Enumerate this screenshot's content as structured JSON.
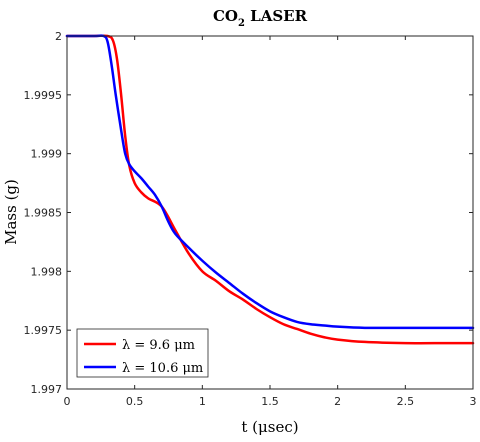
{
  "chart_data": {
    "type": "line",
    "title": "CO",
    "title_subscript": "2",
    "title_rest": " LASER",
    "xlabel": "t (μsec)",
    "ylabel": "Mass (g)",
    "xlim": [
      0,
      3
    ],
    "ylim": [
      1.997,
      2.0
    ],
    "x_ticks": [
      0,
      0.5,
      1,
      1.5,
      2,
      2.5,
      3
    ],
    "x_tick_labels": [
      "0",
      "0.5",
      "1",
      "1.5",
      "2",
      "2.5",
      "3"
    ],
    "y_ticks": [
      1.997,
      1.9975,
      1.998,
      1.9985,
      1.999,
      1.9995,
      2.0
    ],
    "y_tick_labels": [
      "1.997",
      "1.9975",
      "1.998",
      "1.9985",
      "1.999",
      "1.9995",
      "2"
    ],
    "grid": false,
    "legend_position": "bottom-left",
    "series": [
      {
        "name": "λ = 9.6 μm",
        "color": "#ff0000",
        "x": [
          0,
          0.2,
          0.3,
          0.34,
          0.37,
          0.4,
          0.43,
          0.46,
          0.5,
          0.55,
          0.6,
          0.7,
          0.8,
          0.9,
          1.0,
          1.1,
          1.2,
          1.3,
          1.4,
          1.5,
          1.6,
          1.7,
          1.8,
          1.9,
          2.0,
          2.2,
          2.5,
          2.8,
          3.0
        ],
        "y": [
          2.0,
          2.0,
          2.0,
          1.99996,
          1.9998,
          1.9995,
          1.99915,
          1.9989,
          1.99875,
          1.99867,
          1.99862,
          1.99855,
          1.99835,
          1.99815,
          1.998,
          1.99792,
          1.99783,
          1.99776,
          1.99768,
          1.99761,
          1.99755,
          1.99751,
          1.99747,
          1.99744,
          1.99742,
          1.9974,
          1.99739,
          1.99739,
          1.99739
        ]
      },
      {
        "name": "λ = 10.6 μm",
        "color": "#0000ff",
        "x": [
          0,
          0.2,
          0.27,
          0.3,
          0.33,
          0.36,
          0.4,
          0.43,
          0.46,
          0.5,
          0.55,
          0.6,
          0.65,
          0.7,
          0.75,
          0.8,
          0.9,
          1.0,
          1.1,
          1.2,
          1.3,
          1.4,
          1.5,
          1.6,
          1.7,
          1.8,
          1.9,
          2.0,
          2.2,
          2.5,
          2.8,
          3.0
        ],
        "y": [
          2.0,
          2.0,
          2.0,
          1.99995,
          1.99975,
          1.9995,
          1.9992,
          1.999,
          1.99891,
          1.99885,
          1.99879,
          1.99872,
          1.99865,
          1.99855,
          1.99842,
          1.99832,
          1.9982,
          1.99809,
          1.99799,
          1.9979,
          1.99781,
          1.99773,
          1.99766,
          1.99761,
          1.99757,
          1.99755,
          1.99754,
          1.99753,
          1.99752,
          1.99752,
          1.99752,
          1.99752
        ]
      }
    ]
  }
}
